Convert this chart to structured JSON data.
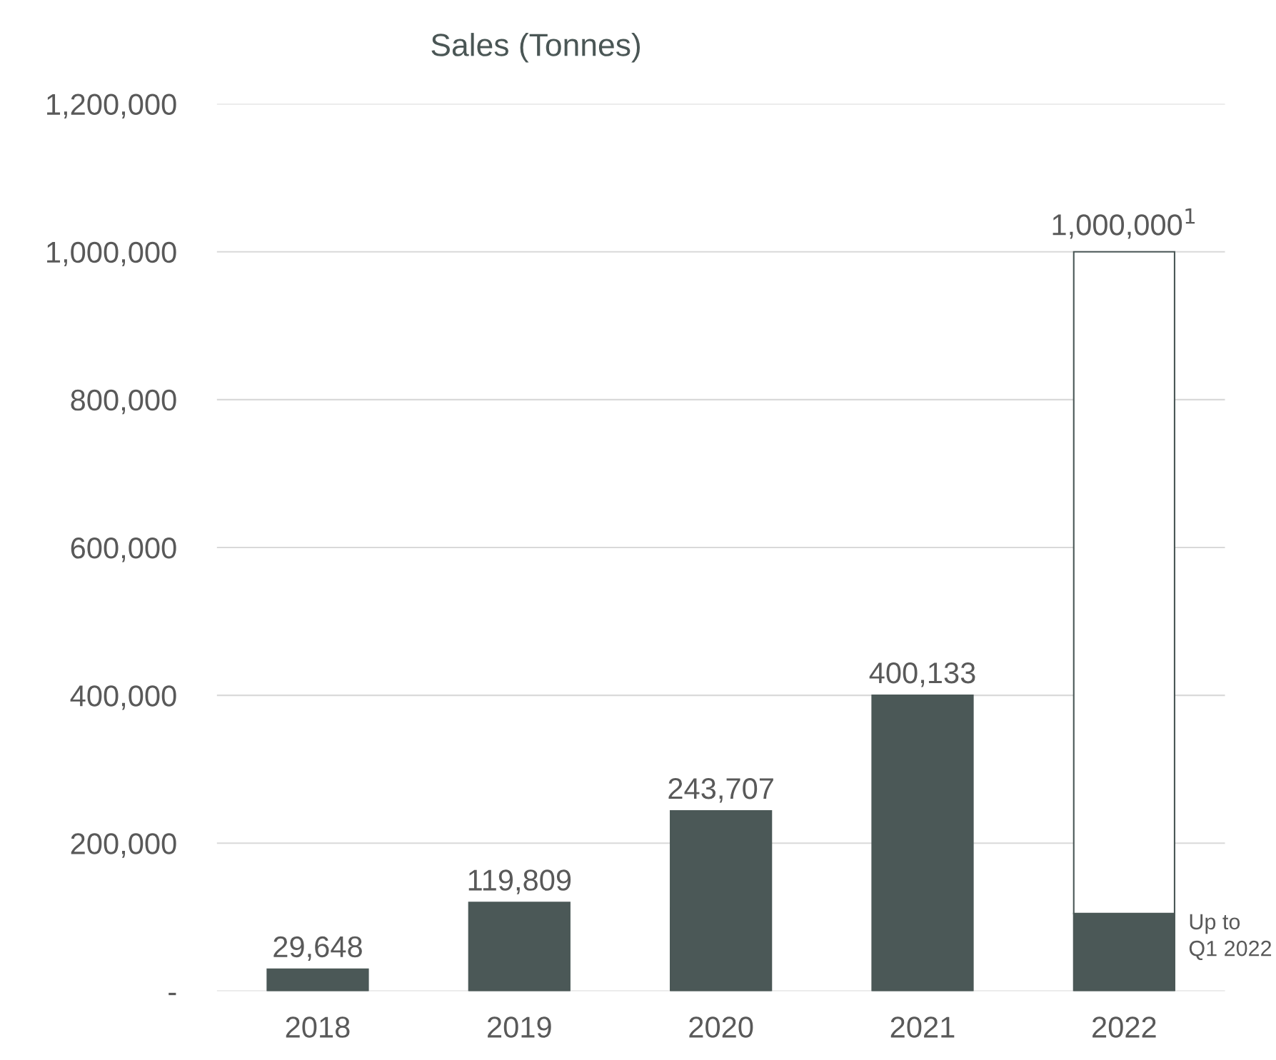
{
  "chart_data": {
    "type": "bar",
    "title": "Sales (Tonnes)",
    "categories": [
      "2018",
      "2019",
      "2020",
      "2021",
      "2022"
    ],
    "stacked": true,
    "series": [
      {
        "color": "#4b5857",
        "values": [
          29648,
          119809,
          243707,
          400133,
          105000
        ],
        "value_labels": [
          "29,648",
          "119,809",
          "243,707",
          "400,133",
          null
        ]
      },
      {
        "color": "#ffffff",
        "values": [
          null,
          null,
          null,
          null,
          895000
        ]
      }
    ],
    "totals": [
      null,
      null,
      null,
      null,
      "1,000,000$^{1}$"
    ],
    "annotations": [
      {
        "text": "Up to\nQ1 2022",
        "x": "2022",
        "y": 105000
      }
    ],
    "ylim": [
      0,
      1200000
    ],
    "yticks": [
      {
        "value": 0,
        "label": "-"
      },
      {
        "value": 200000,
        "label": "200,000"
      },
      {
        "value": 400000,
        "label": "400,000"
      },
      {
        "value": 600000,
        "label": "600,000"
      },
      {
        "value": 800000,
        "label": "800,000"
      },
      {
        "value": 1000000,
        "label": "1,000,000"
      },
      {
        "value": 1200000,
        "label": "1,200,000"
      }
    ],
    "grid": "y",
    "legend": false
  }
}
